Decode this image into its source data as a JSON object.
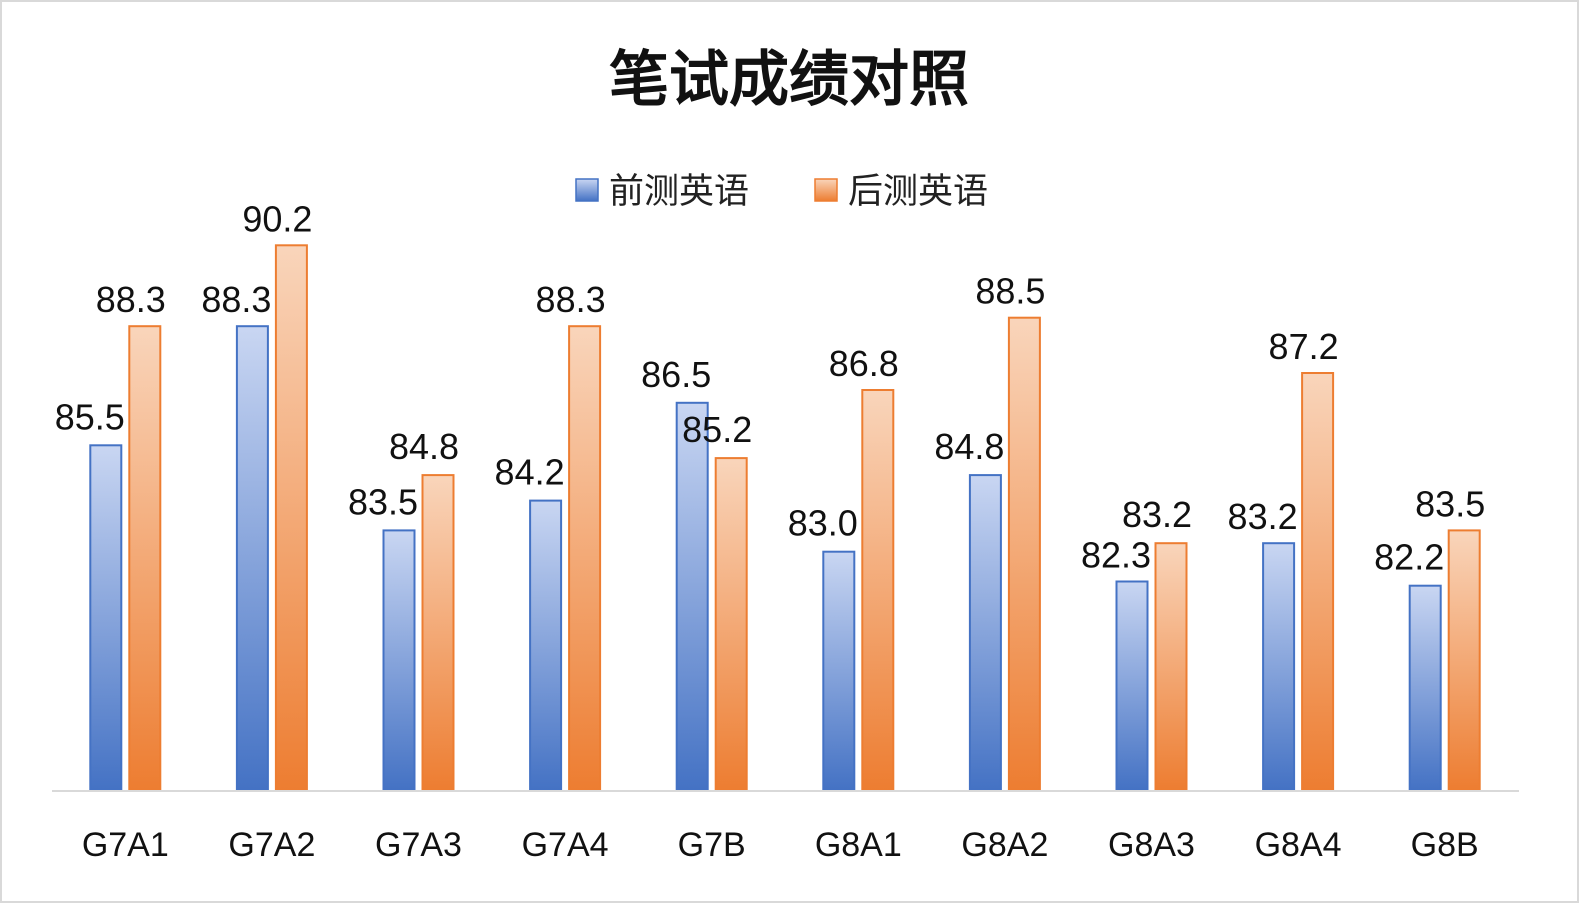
{
  "chart_data": {
    "type": "bar",
    "title": "笔试成绩对照",
    "categories": [
      "G7A1",
      "G7A2",
      "G7A3",
      "G7A4",
      "G7B",
      "G8A1",
      "G8A2",
      "G8A3",
      "G8A4",
      "G8B"
    ],
    "series": [
      {
        "name": "前测英语",
        "values": [
          85.5,
          88.3,
          83.5,
          84.2,
          86.5,
          83.0,
          84.8,
          82.3,
          83.2,
          82.2
        ],
        "labels": [
          "85.5",
          "88.3",
          "83.5",
          "84.2",
          "86.5",
          "83.0",
          "84.8",
          "82.3",
          "83.2",
          "82.2"
        ],
        "color": "#4472c4",
        "color_light": "#c9d6f2"
      },
      {
        "name": "后测英语",
        "values": [
          88.3,
          90.2,
          84.8,
          88.3,
          85.2,
          86.8,
          88.5,
          83.2,
          87.2,
          83.5
        ],
        "labels": [
          "88.3",
          "90.2",
          "84.8",
          "88.3",
          "85.2",
          "86.8",
          "88.5",
          "83.2",
          "87.2",
          "83.5"
        ],
        "color": "#ed7d31",
        "color_light": "#f9d5bb"
      }
    ],
    "ylim": [
      77.4,
      91.5
    ],
    "grid": false,
    "legend": "top-center"
  }
}
